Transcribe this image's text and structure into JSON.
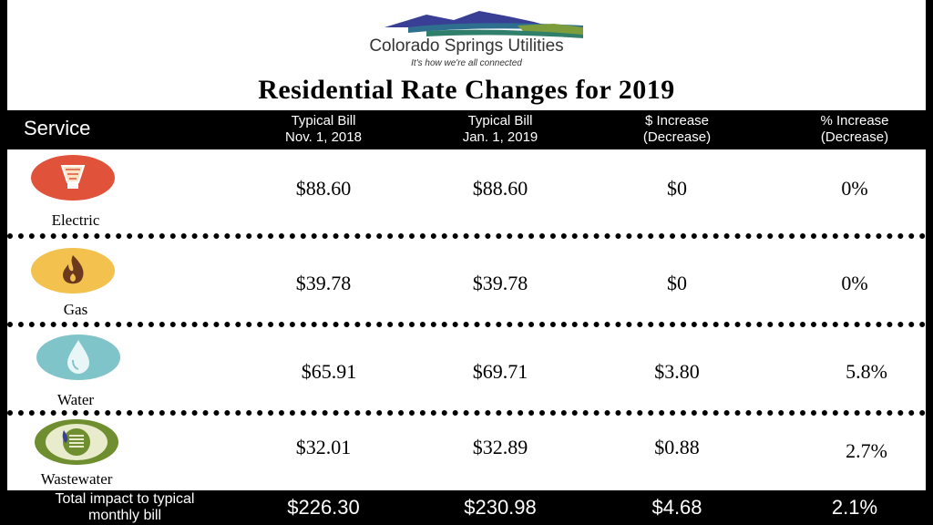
{
  "header": {
    "org_name": "Colorado Springs Utilities",
    "tagline": "It's how we're all connected",
    "title": "Residential Rate Changes for 2019"
  },
  "columns": {
    "service": "Service",
    "col1": [
      "Typical  Bill",
      "Nov. 1, 2018"
    ],
    "col2": [
      "Typical Bill",
      "Jan. 1, 2019"
    ],
    "col3": [
      "$ Increase",
      "(Decrease)"
    ],
    "col4": [
      "% Increase",
      "(Decrease)"
    ]
  },
  "rows": [
    {
      "service": "Electric",
      "icon": "lightbulb-icon",
      "color": "#e0523a",
      "nov": "$88.60",
      "jan": "$88.60",
      "inc": "$0",
      "pct": "0%"
    },
    {
      "service": "Gas",
      "icon": "flame-icon",
      "color": "#f2c14e",
      "nov": "$39.78",
      "jan": "$39.78",
      "inc": "$0",
      "pct": "0%"
    },
    {
      "service": "Water",
      "icon": "water-drop-icon",
      "color": "#7fc4c9",
      "nov": "$65.91",
      "jan": "$69.71",
      "inc": "$3.80",
      "pct": "5.8%"
    },
    {
      "service": "Wastewater",
      "icon": "wastewater-icon",
      "color": "#6e8e2f",
      "nov": "$32.01",
      "jan": "$32.89",
      "inc": "$0.88",
      "pct": "2.7%"
    }
  ],
  "total": {
    "label": [
      "Total impact to typical",
      "monthly bill"
    ],
    "nov": "$226.30",
    "jan": "$230.98",
    "inc": "$4.68",
    "pct": "2.1%"
  }
}
